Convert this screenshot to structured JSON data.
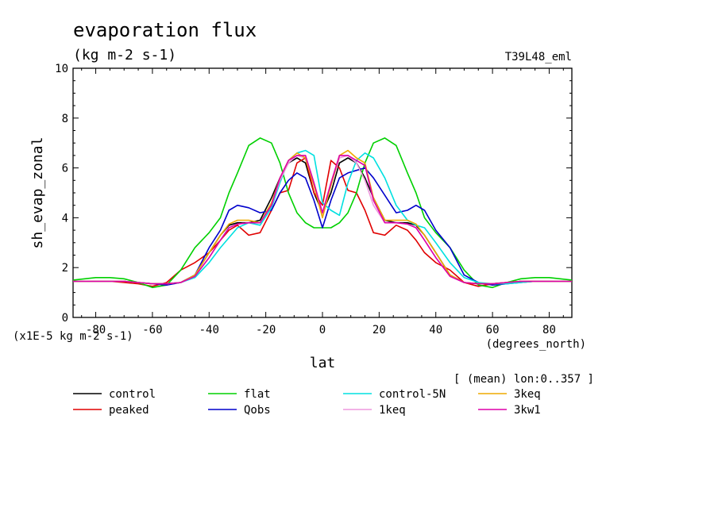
{
  "header": {
    "title": "evaporation flux",
    "units": "(kg m-2 s-1)",
    "experiment": "T39L48_eml",
    "scale_note": "(x1E-5 kg m-2 s-1)",
    "x_unit": "(degrees_north)",
    "mean_note": "[ (mean) lon:0..357 ]"
  },
  "chart_data": {
    "type": "line",
    "title": "evaporation flux",
    "xlabel": "lat",
    "ylabel": "sh_evap_zonal",
    "xlim": [
      -88,
      88
    ],
    "ylim": [
      0,
      10
    ],
    "xticks": [
      -80,
      -60,
      -40,
      -20,
      0,
      20,
      40,
      60,
      80
    ],
    "yticks": [
      0,
      2,
      4,
      6,
      8,
      10
    ],
    "xtick_labels": [
      "-80",
      "-60",
      "-40",
      "-20",
      "0",
      "20",
      "40",
      "60",
      "80"
    ],
    "ytick_labels": [
      "0",
      "2",
      "4",
      "6",
      "8",
      "10"
    ],
    "grid": false,
    "legend_position": "bottom",
    "x": [
      -88,
      -80,
      -75,
      -70,
      -65,
      -60,
      -55,
      -50,
      -45,
      -40,
      -36,
      -33,
      -30,
      -26,
      -22,
      -18,
      -15,
      -12,
      -9,
      -6,
      -3,
      0,
      3,
      6,
      9,
      12,
      15,
      18,
      22,
      26,
      30,
      33,
      36,
      40,
      45,
      50,
      55,
      60,
      65,
      70,
      75,
      80,
      88
    ],
    "series": [
      {
        "name": "control",
        "color": "#000000",
        "values": [
          1.45,
          1.45,
          1.45,
          1.45,
          1.4,
          1.35,
          1.35,
          1.4,
          1.7,
          2.6,
          3.3,
          3.7,
          3.8,
          3.8,
          3.9,
          4.8,
          5.6,
          6.2,
          6.4,
          6.2,
          5.0,
          4.2,
          5.0,
          6.2,
          6.4,
          6.2,
          5.6,
          4.8,
          3.9,
          3.8,
          3.8,
          3.7,
          3.3,
          2.6,
          1.7,
          1.4,
          1.35,
          1.35,
          1.4,
          1.45,
          1.45,
          1.45,
          1.45
        ]
      },
      {
        "name": "peaked",
        "color": "#e00000",
        "values": [
          1.45,
          1.45,
          1.45,
          1.4,
          1.35,
          1.25,
          1.4,
          1.9,
          2.2,
          2.6,
          3.1,
          3.5,
          3.7,
          3.3,
          3.4,
          4.3,
          5.0,
          5.1,
          6.2,
          6.4,
          5.0,
          4.5,
          6.3,
          6.0,
          5.1,
          5.0,
          4.3,
          3.4,
          3.3,
          3.7,
          3.5,
          3.1,
          2.6,
          2.2,
          1.9,
          1.4,
          1.25,
          1.35,
          1.4,
          1.45,
          1.45,
          1.45,
          1.45
        ]
      },
      {
        "name": "flat",
        "color": "#00d000",
        "values": [
          1.5,
          1.6,
          1.6,
          1.55,
          1.4,
          1.2,
          1.3,
          1.9,
          2.8,
          3.4,
          4.0,
          5.0,
          5.8,
          6.9,
          7.2,
          7.0,
          6.2,
          5.0,
          4.2,
          3.8,
          3.6,
          3.6,
          3.6,
          3.8,
          4.2,
          5.0,
          6.2,
          7.0,
          7.2,
          6.9,
          5.8,
          5.0,
          4.0,
          3.4,
          2.8,
          1.9,
          1.3,
          1.2,
          1.4,
          1.55,
          1.6,
          1.6,
          1.5
        ]
      },
      {
        "name": "Qobs",
        "color": "#0000cc",
        "values": [
          1.45,
          1.45,
          1.45,
          1.45,
          1.4,
          1.35,
          1.3,
          1.4,
          1.7,
          2.8,
          3.5,
          4.3,
          4.5,
          4.4,
          4.2,
          4.3,
          5.0,
          5.5,
          5.8,
          5.6,
          4.7,
          3.6,
          4.7,
          5.6,
          5.8,
          5.9,
          6.0,
          5.6,
          4.9,
          4.2,
          4.3,
          4.5,
          4.3,
          3.5,
          2.8,
          1.7,
          1.4,
          1.3,
          1.35,
          1.4,
          1.45,
          1.45,
          1.45
        ]
      },
      {
        "name": "control-5N",
        "color": "#00e0e0",
        "values": [
          1.45,
          1.45,
          1.45,
          1.45,
          1.4,
          1.35,
          1.35,
          1.4,
          1.6,
          2.2,
          2.8,
          3.2,
          3.6,
          3.8,
          3.7,
          4.4,
          5.4,
          6.3,
          6.6,
          6.7,
          6.5,
          4.6,
          4.3,
          4.1,
          5.4,
          6.3,
          6.6,
          6.4,
          5.6,
          4.5,
          3.9,
          3.7,
          3.6,
          3.0,
          2.2,
          1.6,
          1.4,
          1.35,
          1.35,
          1.4,
          1.45,
          1.45,
          1.45
        ]
      },
      {
        "name": "1keq",
        "color": "#ee99dd",
        "values": [
          1.45,
          1.45,
          1.45,
          1.45,
          1.4,
          1.35,
          1.35,
          1.4,
          1.65,
          2.4,
          3.1,
          3.6,
          3.75,
          3.8,
          3.8,
          4.5,
          5.5,
          6.2,
          6.5,
          6.4,
          5.3,
          4.1,
          5.3,
          6.4,
          6.5,
          6.2,
          5.5,
          4.5,
          3.8,
          3.8,
          3.75,
          3.6,
          3.1,
          2.4,
          1.65,
          1.4,
          1.35,
          1.35,
          1.4,
          1.45,
          1.45,
          1.45,
          1.45
        ]
      },
      {
        "name": "3keq",
        "color": "#eeaa00",
        "values": [
          1.45,
          1.45,
          1.45,
          1.45,
          1.4,
          1.35,
          1.35,
          1.4,
          1.7,
          2.6,
          3.3,
          3.75,
          3.9,
          3.9,
          3.8,
          4.6,
          5.6,
          6.3,
          6.6,
          6.4,
          5.3,
          4.0,
          5.3,
          6.5,
          6.7,
          6.4,
          6.2,
          4.8,
          3.9,
          3.9,
          3.9,
          3.75,
          3.3,
          2.6,
          1.7,
          1.4,
          1.35,
          1.35,
          1.4,
          1.45,
          1.45,
          1.45,
          1.45
        ]
      },
      {
        "name": "3kw1",
        "color": "#dd00aa",
        "values": [
          1.45,
          1.45,
          1.45,
          1.45,
          1.4,
          1.35,
          1.35,
          1.4,
          1.65,
          2.4,
          3.1,
          3.6,
          3.75,
          3.8,
          3.8,
          4.5,
          5.6,
          6.3,
          6.5,
          6.5,
          5.4,
          4.2,
          5.4,
          6.5,
          6.5,
          6.3,
          6.1,
          4.7,
          3.8,
          3.8,
          3.75,
          3.6,
          3.1,
          2.4,
          1.65,
          1.4,
          1.35,
          1.35,
          1.4,
          1.45,
          1.45,
          1.45,
          1.45
        ]
      }
    ]
  }
}
